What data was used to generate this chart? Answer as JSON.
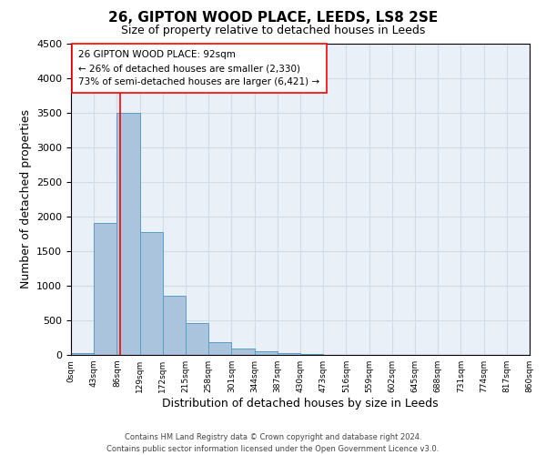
{
  "title": "26, GIPTON WOOD PLACE, LEEDS, LS8 2SE",
  "subtitle": "Size of property relative to detached houses in Leeds",
  "xlabel": "Distribution of detached houses by size in Leeds",
  "ylabel": "Number of detached properties",
  "bar_edges": [
    0,
    43,
    86,
    129,
    172,
    215,
    258,
    301,
    344,
    387,
    430,
    473,
    516,
    559,
    602,
    645,
    688,
    731,
    774,
    817,
    860
  ],
  "bar_heights": [
    30,
    1900,
    3500,
    1780,
    860,
    460,
    185,
    90,
    50,
    30,
    15,
    0,
    0,
    0,
    0,
    0,
    0,
    0,
    0,
    0
  ],
  "bar_color": "#aac4de",
  "bar_edge_color": "#5a9fc4",
  "property_line_x": 92,
  "ylim": [
    0,
    4500
  ],
  "annotation_title": "26 GIPTON WOOD PLACE: 92sqm",
  "annotation_line1": "← 26% of detached houses are smaller (2,330)",
  "annotation_line2": "73% of semi-detached houses are larger (6,421) →",
  "footer_line1": "Contains HM Land Registry data © Crown copyright and database right 2024.",
  "footer_line2": "Contains public sector information licensed under the Open Government Licence v3.0.",
  "tick_labels": [
    "0sqm",
    "43sqm",
    "86sqm",
    "129sqm",
    "172sqm",
    "215sqm",
    "258sqm",
    "301sqm",
    "344sqm",
    "387sqm",
    "430sqm",
    "473sqm",
    "516sqm",
    "559sqm",
    "602sqm",
    "645sqm",
    "688sqm",
    "731sqm",
    "774sqm",
    "817sqm",
    "860sqm"
  ],
  "grid_color": "#d0dce8",
  "background_color": "#eaf0f7"
}
